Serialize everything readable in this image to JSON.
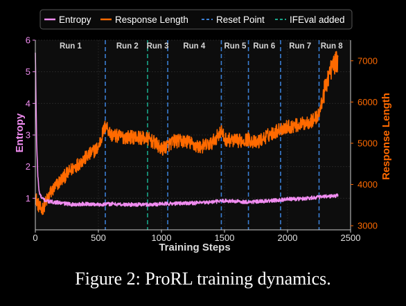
{
  "caption": "Figure 2: ProRL training dynamics.",
  "colors": {
    "entropy": "#f08cf0",
    "response_length": "#ff6a00",
    "reset_point": "#3b7fd4",
    "ifeval_added": "#1aa58a",
    "background": "#000000",
    "plot_background": "#0d0d0d"
  },
  "chart_data": {
    "type": "line",
    "xlabel": "Training Steps",
    "ylabel_left": "Entropy",
    "ylabel_right": "Response Length",
    "xlim": [
      0,
      2500
    ],
    "ylim_left": [
      0,
      6
    ],
    "ylim_right": [
      2900,
      7500
    ],
    "x_ticks": [
      "0",
      "500",
      "1000",
      "1500",
      "2000",
      "2500"
    ],
    "y_ticks_left": [
      "1",
      "2",
      "3",
      "4",
      "5",
      "6"
    ],
    "y_ticks_right": [
      "3000",
      "4000",
      "5000",
      "6000",
      "7000"
    ],
    "grid": true,
    "legend_position": "top",
    "legend": [
      "Entropy",
      "Response Length",
      "Reset Point",
      "IFEval added"
    ],
    "reset_points": [
      555,
      1050,
      1475,
      1690,
      1945,
      2250
    ],
    "ifeval_added": [
      890
    ],
    "runs": [
      "Run 1",
      "Run 2",
      "Run 3",
      "Run 4",
      "Run 5",
      "Run 6",
      "Run 7",
      "Run 8"
    ],
    "run_label_x": [
      280,
      730,
      970,
      1260,
      1585,
      1815,
      2100,
      2350
    ],
    "series": [
      {
        "name": "Entropy",
        "axis": "left",
        "x": [
          0,
          5,
          10,
          20,
          30,
          50,
          70,
          100,
          200,
          300,
          400,
          500,
          600,
          700,
          800,
          900,
          1000,
          1100,
          1200,
          1300,
          1400,
          1500,
          1600,
          1700,
          1800,
          1900,
          2000,
          2100,
          2200,
          2300,
          2400
        ],
        "y": [
          5.6,
          4.2,
          2.8,
          1.7,
          1.2,
          1.0,
          0.95,
          0.9,
          0.85,
          0.8,
          0.82,
          0.8,
          0.82,
          0.8,
          0.8,
          0.8,
          0.82,
          0.83,
          0.85,
          0.85,
          0.88,
          0.92,
          0.9,
          0.88,
          0.9,
          0.93,
          0.97,
          0.98,
          1.02,
          1.05,
          1.08
        ]
      },
      {
        "name": "Response Length",
        "axis": "right",
        "x": [
          0,
          30,
          50,
          80,
          120,
          200,
          300,
          400,
          500,
          540,
          560,
          600,
          700,
          800,
          900,
          950,
          1000,
          1050,
          1100,
          1200,
          1300,
          1400,
          1475,
          1500,
          1600,
          1690,
          1750,
          1850,
          1945,
          2000,
          2100,
          2200,
          2250,
          2280,
          2320,
          2360,
          2400
        ],
        "y": [
          3700,
          3450,
          3380,
          3550,
          3800,
          4100,
          4400,
          4650,
          4900,
          5300,
          5450,
          5200,
          5150,
          5150,
          5100,
          5000,
          4850,
          4950,
          5050,
          5050,
          4900,
          5000,
          5300,
          5100,
          5050,
          5100,
          5000,
          5200,
          5350,
          5400,
          5450,
          5550,
          5700,
          6100,
          6600,
          6900,
          7000
        ]
      }
    ]
  }
}
